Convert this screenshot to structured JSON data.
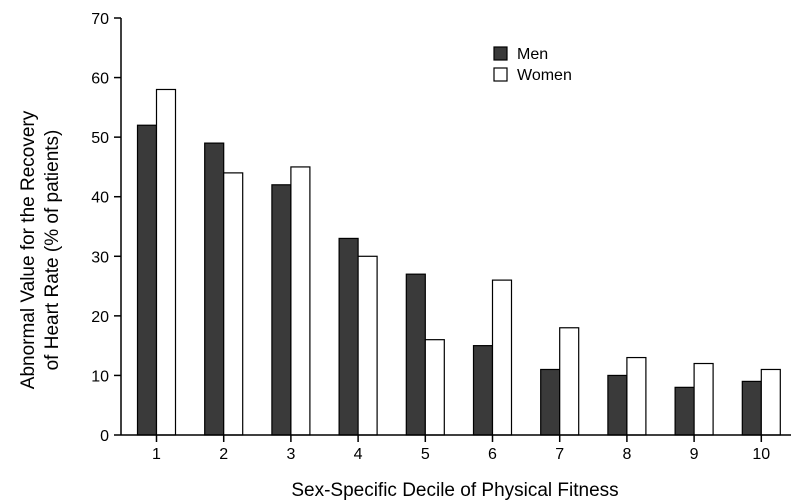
{
  "chart_data": {
    "type": "bar",
    "title": "",
    "xlabel": "Sex-Specific Decile of Physical Fitness",
    "ylabel_lines": [
      "Abnormal Value for the Recovery",
      "of Heart Rate (% of patients)"
    ],
    "categories": [
      "1",
      "2",
      "3",
      "4",
      "5",
      "6",
      "7",
      "8",
      "9",
      "10"
    ],
    "ylim": [
      0,
      70
    ],
    "yticks": [
      0,
      10,
      20,
      30,
      40,
      50,
      60,
      70
    ],
    "legend_position": "top-right",
    "grid": false,
    "series": [
      {
        "name": "Men",
        "color": "#3a3a3a",
        "values": [
          52,
          49,
          42,
          33,
          27,
          15,
          11,
          10,
          8,
          9
        ]
      },
      {
        "name": "Women",
        "color": "#ffffff",
        "values": [
          58,
          44,
          45,
          30,
          16,
          26,
          18,
          13,
          12,
          11
        ]
      }
    ]
  }
}
